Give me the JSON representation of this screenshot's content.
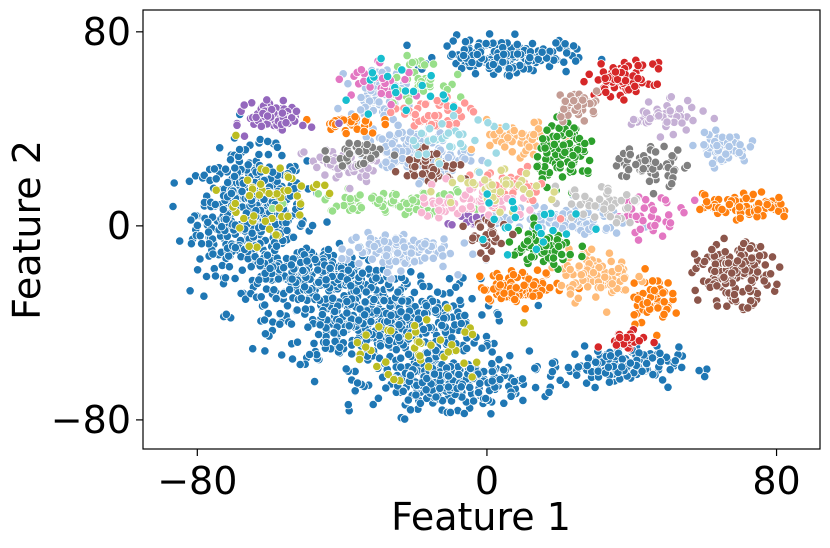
{
  "chart_data": {
    "type": "scatter",
    "title": "",
    "xlabel": "Feature 1",
    "ylabel": "Feature 2",
    "xlim": [
      -95,
      92
    ],
    "ylim": [
      -92,
      89
    ],
    "xticks": [
      -80,
      0,
      80
    ],
    "yticks": [
      -80,
      0,
      80
    ],
    "xtick_labels": [
      "−80",
      "0",
      "80"
    ],
    "ytick_labels": [
      "−80",
      "0",
      "80"
    ],
    "grid": false,
    "legend": "none",
    "marker_edge_color": "#ffffff",
    "series": [
      {
        "color": "#1f77b4",
        "clusters": [
          {
            "center": [
              -65,
              5
            ],
            "spread": [
              15,
              25
            ],
            "n": 520
          },
          {
            "center": [
              -30,
              -40
            ],
            "spread": [
              28,
              18
            ],
            "n": 520
          },
          {
            "center": [
              -10,
              -65
            ],
            "spread": [
              20,
              10
            ],
            "n": 260
          },
          {
            "center": [
              5,
              70
            ],
            "spread": [
              18,
              7
            ],
            "n": 180
          },
          {
            "center": [
              35,
              -58
            ],
            "spread": [
              18,
              8
            ],
            "n": 140
          },
          {
            "center": [
              -45,
              -20
            ],
            "spread": [
              20,
              12
            ],
            "n": 240
          }
        ]
      },
      {
        "color": "#aec7e8",
        "clusters": [
          {
            "center": [
              65,
              32
            ],
            "spread": [
              7,
              6
            ],
            "n": 70
          },
          {
            "center": [
              -30,
              55
            ],
            "spread": [
              8,
              10
            ],
            "n": 70
          },
          {
            "center": [
              -20,
              30
            ],
            "spread": [
              15,
              10
            ],
            "n": 130
          },
          {
            "center": [
              -25,
              -10
            ],
            "spread": [
              15,
              8
            ],
            "n": 110
          },
          {
            "center": [
              20,
              2
            ],
            "spread": [
              20,
              6
            ],
            "n": 90
          }
        ]
      },
      {
        "color": "#ff7f0e",
        "clusters": [
          {
            "center": [
              72,
              8
            ],
            "spread": [
              12,
              5
            ],
            "n": 90
          },
          {
            "center": [
              10,
              -25
            ],
            "spread": [
              12,
              6
            ],
            "n": 90
          },
          {
            "center": [
              45,
              -30
            ],
            "spread": [
              6,
              10
            ],
            "n": 60
          },
          {
            "center": [
              -38,
              42
            ],
            "spread": [
              8,
              4
            ],
            "n": 30
          }
        ]
      },
      {
        "color": "#ffbb78",
        "clusters": [
          {
            "center": [
              30,
              -20
            ],
            "spread": [
              10,
              10
            ],
            "n": 90
          },
          {
            "center": [
              10,
              35
            ],
            "spread": [
              10,
              8
            ],
            "n": 60
          }
        ]
      },
      {
        "color": "#2ca02c",
        "clusters": [
          {
            "center": [
              22,
              30
            ],
            "spread": [
              8,
              12
            ],
            "n": 100
          },
          {
            "center": [
              15,
              -10
            ],
            "spread": [
              10,
              8
            ],
            "n": 80
          }
        ]
      },
      {
        "color": "#98df8a",
        "clusters": [
          {
            "center": [
              -25,
              10
            ],
            "spread": [
              25,
              5
            ],
            "n": 90
          },
          {
            "center": [
              -20,
              60
            ],
            "spread": [
              8,
              8
            ],
            "n": 40
          }
        ]
      },
      {
        "color": "#d62728",
        "clusters": [
          {
            "center": [
              38,
              60
            ],
            "spread": [
              8,
              7
            ],
            "n": 80
          },
          {
            "center": [
              38,
              -47
            ],
            "spread": [
              6,
              3
            ],
            "n": 35
          }
        ]
      },
      {
        "color": "#ff9896",
        "clusters": [
          {
            "center": [
              -15,
              45
            ],
            "spread": [
              10,
              8
            ],
            "n": 50
          },
          {
            "center": [
              5,
              15
            ],
            "spread": [
              12,
              8
            ],
            "n": 50
          }
        ]
      },
      {
        "color": "#9467bd",
        "clusters": [
          {
            "center": [
              -58,
              45
            ],
            "spread": [
              8,
              6
            ],
            "n": 80
          },
          {
            "center": [
              -5,
              2
            ],
            "spread": [
              6,
              4
            ],
            "n": 20
          }
        ]
      },
      {
        "color": "#c5b0d5",
        "clusters": [
          {
            "center": [
              50,
              45
            ],
            "spread": [
              10,
              6
            ],
            "n": 50
          },
          {
            "center": [
              -40,
              25
            ],
            "spread": [
              10,
              8
            ],
            "n": 50
          }
        ]
      },
      {
        "color": "#8c564b",
        "clusters": [
          {
            "center": [
              68,
              -20
            ],
            "spread": [
              10,
              12
            ],
            "n": 170
          },
          {
            "center": [
              -15,
              25
            ],
            "spread": [
              8,
              8
            ],
            "n": 40
          },
          {
            "center": [
              0,
              -5
            ],
            "spread": [
              6,
              8
            ],
            "n": 30
          }
        ]
      },
      {
        "color": "#c49c94",
        "clusters": [
          {
            "center": [
              25,
              50
            ],
            "spread": [
              6,
              6
            ],
            "n": 40
          }
        ]
      },
      {
        "color": "#e377c2",
        "clusters": [
          {
            "center": [
              45,
              5
            ],
            "spread": [
              10,
              8
            ],
            "n": 40
          },
          {
            "center": [
              -30,
              60
            ],
            "spread": [
              10,
              8
            ],
            "n": 30
          }
        ]
      },
      {
        "color": "#f7b6d2",
        "clusters": [
          {
            "center": [
              -5,
              10
            ],
            "spread": [
              15,
              8
            ],
            "n": 50
          }
        ]
      },
      {
        "color": "#7f7f7f",
        "clusters": [
          {
            "center": [
              45,
              25
            ],
            "spread": [
              10,
              8
            ],
            "n": 60
          },
          {
            "center": [
              -35,
              30
            ],
            "spread": [
              8,
              6
            ],
            "n": 30
          }
        ]
      },
      {
        "color": "#c7c7c7",
        "clusters": [
          {
            "center": [
              30,
              10
            ],
            "spread": [
              12,
              8
            ],
            "n": 40
          }
        ]
      },
      {
        "color": "#bcbd22",
        "clusters": [
          {
            "center": [
              -60,
              10
            ],
            "spread": [
              15,
              18
            ],
            "n": 50
          },
          {
            "center": [
              -20,
              -50
            ],
            "spread": [
              25,
              15
            ],
            "n": 40
          }
        ]
      },
      {
        "color": "#dbdb8d",
        "clusters": [
          {
            "center": [
              0,
              15
            ],
            "spread": [
              18,
              8
            ],
            "n": 40
          }
        ]
      },
      {
        "color": "#17becf",
        "clusters": [
          {
            "center": [
              -25,
              55
            ],
            "spread": [
              15,
              10
            ],
            "n": 20
          },
          {
            "center": [
              10,
              0
            ],
            "spread": [
              20,
              10
            ],
            "n": 20
          }
        ]
      },
      {
        "color": "#9edae5",
        "clusters": [
          {
            "center": [
              -10,
              35
            ],
            "spread": [
              15,
              10
            ],
            "n": 30
          }
        ]
      }
    ]
  }
}
